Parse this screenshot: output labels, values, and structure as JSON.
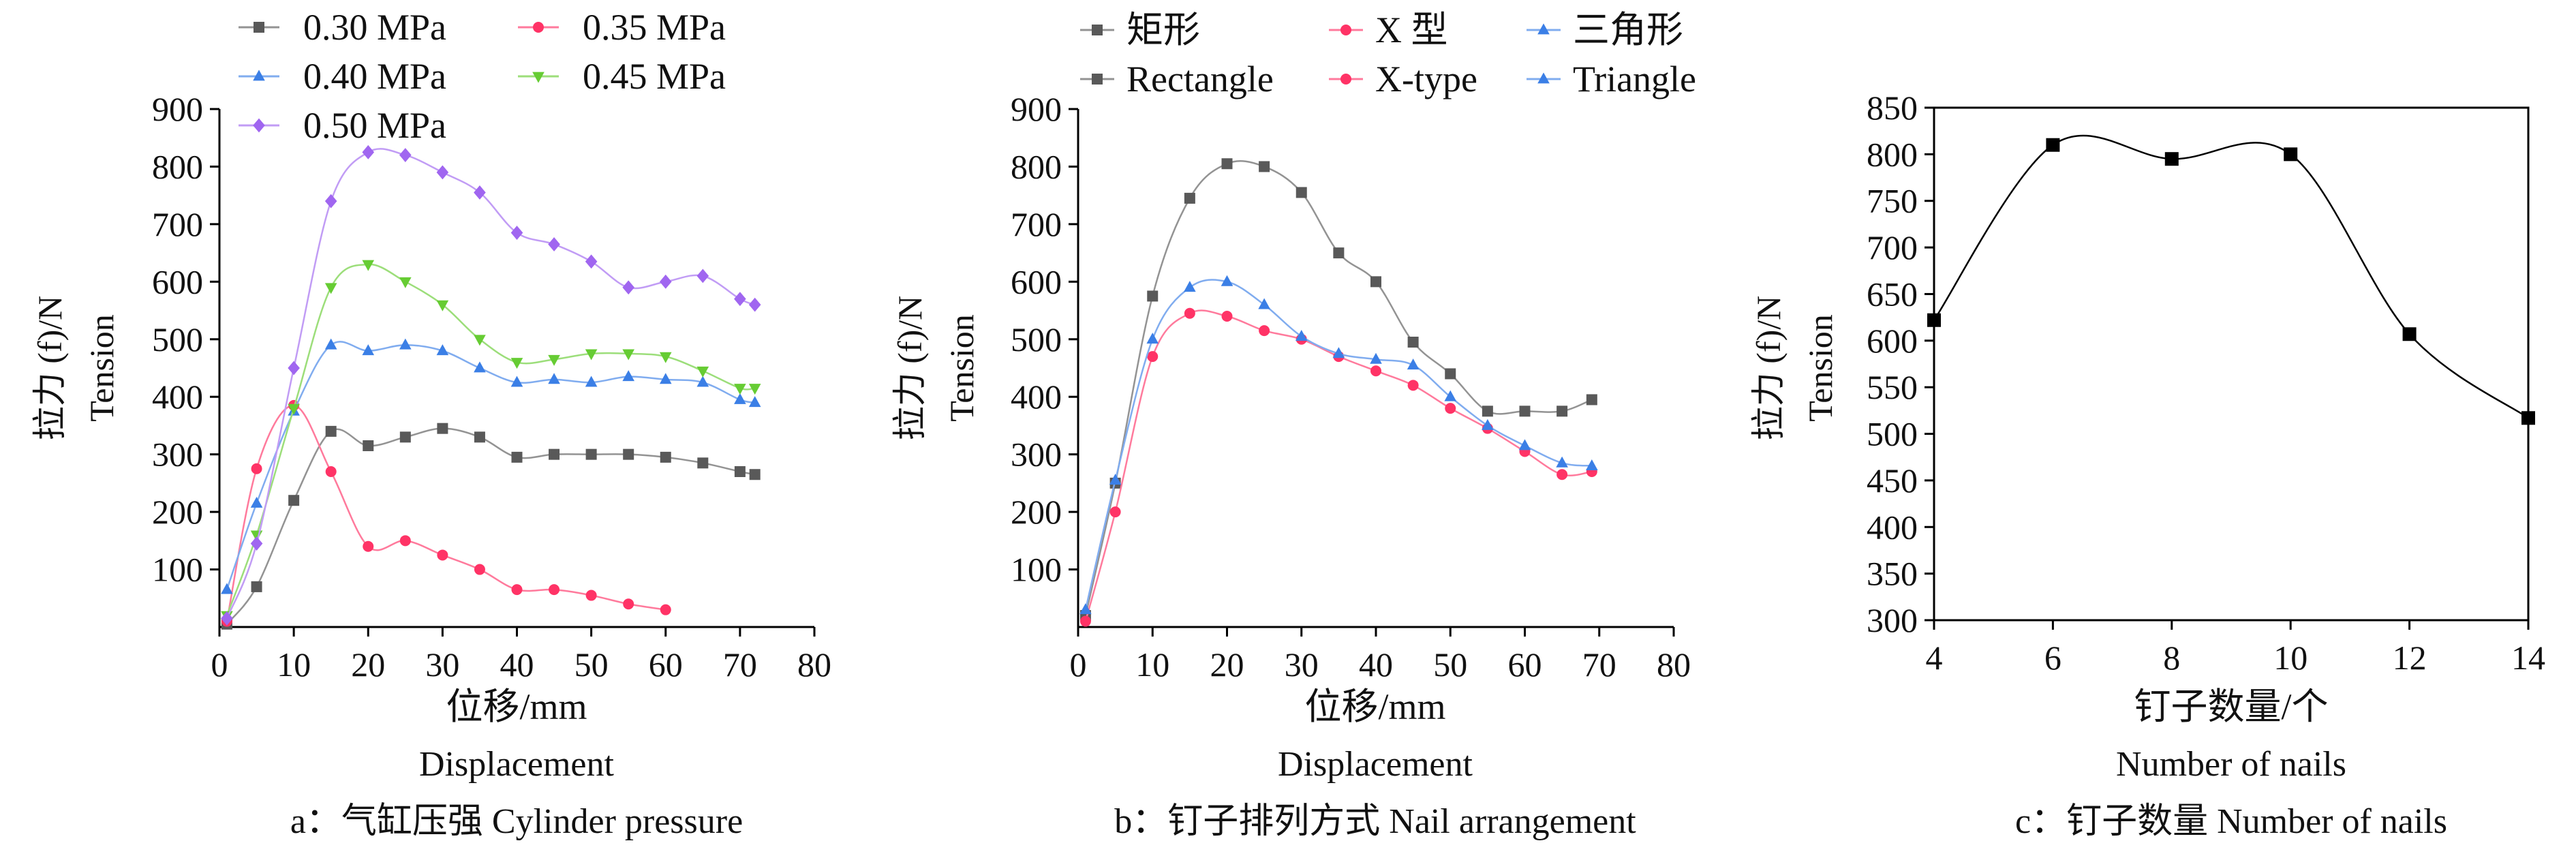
{
  "figure": {
    "panels": [
      {
        "caption": "a：气缸压强 Cylinder pressure",
        "ylabel_cn": "拉力 (f)/N",
        "ylabel_en": "Tension",
        "xlabel_cn": "位移/mm",
        "xlabel_en": "Displacement"
      },
      {
        "caption": "b：钉子排列方式 Nail arrangement",
        "ylabel_cn": "拉力 (f)/N",
        "ylabel_en": "Tension",
        "xlabel_cn": "位移/mm",
        "xlabel_en": "Displacement"
      },
      {
        "caption": "c：钉子数量 Number of nails",
        "ylabel_cn": "拉力 (f)/N",
        "ylabel_en": "Tension",
        "xlabel_cn": "钉子数量/个",
        "xlabel_en": "Number of nails"
      }
    ]
  },
  "chart_data": [
    {
      "type": "line",
      "title": "a：气缸压强 Cylinder pressure",
      "xlabel": "位移/mm Displacement",
      "ylabel": "拉力 (f)/N Tension",
      "xlim": [
        0,
        80
      ],
      "ylim": [
        0,
        900
      ],
      "xticks": [
        "0",
        "10",
        "20",
        "30",
        "40",
        "50",
        "60",
        "70",
        "80"
      ],
      "yticks": [
        "100",
        "200",
        "300",
        "400",
        "500",
        "600",
        "700",
        "800",
        "900"
      ],
      "legend": "top-left",
      "series": [
        {
          "name": "0.30 MPa",
          "marker": "square",
          "color": "#595959",
          "x": [
            1,
            5,
            10,
            15,
            20,
            25,
            30,
            35,
            40,
            45,
            50,
            55,
            60,
            65,
            70,
            72
          ],
          "y": [
            5,
            70,
            220,
            340,
            315,
            330,
            345,
            330,
            295,
            300,
            300,
            300,
            295,
            285,
            270,
            265
          ]
        },
        {
          "name": "0.35 MPa",
          "marker": "circle",
          "color": "#ff3366",
          "x": [
            1,
            5,
            10,
            15,
            20,
            25,
            30,
            35,
            40,
            45,
            50,
            55,
            60
          ],
          "y": [
            10,
            275,
            385,
            270,
            140,
            150,
            125,
            100,
            65,
            65,
            55,
            40,
            30
          ]
        },
        {
          "name": "0.40 MPa",
          "marker": "triangle-up",
          "color": "#3b7fe6",
          "x": [
            1,
            5,
            10,
            15,
            20,
            25,
            30,
            35,
            40,
            45,
            50,
            55,
            60,
            65,
            70,
            72
          ],
          "y": [
            65,
            215,
            375,
            490,
            480,
            490,
            480,
            450,
            425,
            430,
            425,
            435,
            430,
            425,
            395,
            390
          ]
        },
        {
          "name": "0.45 MPa",
          "marker": "triangle-down",
          "color": "#66cc33",
          "x": [
            1,
            5,
            10,
            15,
            20,
            25,
            30,
            35,
            40,
            45,
            50,
            55,
            60,
            65,
            70,
            72
          ],
          "y": [
            20,
            160,
            380,
            590,
            630,
            600,
            560,
            500,
            460,
            465,
            475,
            475,
            470,
            445,
            415,
            415
          ]
        },
        {
          "name": "0.50 MPa",
          "marker": "diamond",
          "color": "#a066f0",
          "x": [
            1,
            5,
            10,
            15,
            20,
            25,
            30,
            35,
            40,
            45,
            50,
            55,
            60,
            65,
            70,
            72
          ],
          "y": [
            15,
            145,
            450,
            740,
            825,
            820,
            790,
            755,
            685,
            665,
            635,
            590,
            600,
            610,
            570,
            560
          ]
        }
      ]
    },
    {
      "type": "line",
      "title": "b：钉子排列方式 Nail arrangement",
      "xlabel": "位移/mm Displacement",
      "ylabel": "拉力 (f)/N Tension",
      "xlim": [
        0,
        80
      ],
      "ylim": [
        0,
        900
      ],
      "xticks": [
        "0",
        "10",
        "20",
        "30",
        "40",
        "50",
        "60",
        "70",
        "80"
      ],
      "yticks": [
        "100",
        "200",
        "300",
        "400",
        "500",
        "600",
        "700",
        "800",
        "900"
      ],
      "legend": "top",
      "series": [
        {
          "name": "矩形 Rectangle",
          "legend_cn": "矩形",
          "legend_en": "Rectangle",
          "marker": "square",
          "color": "#595959",
          "x": [
            1,
            5,
            10,
            15,
            20,
            25,
            30,
            35,
            40,
            45,
            50,
            55,
            60,
            65,
            69
          ],
          "y": [
            20,
            250,
            575,
            745,
            805,
            800,
            755,
            650,
            600,
            495,
            440,
            375,
            375,
            375,
            395
          ]
        },
        {
          "name": "X 型 X-type",
          "legend_cn": "X 型",
          "legend_en": "X-type",
          "marker": "circle",
          "color": "#ff3366",
          "x": [
            1,
            5,
            10,
            15,
            20,
            25,
            30,
            35,
            40,
            45,
            50,
            55,
            60,
            65,
            69
          ],
          "y": [
            10,
            200,
            470,
            545,
            540,
            515,
            500,
            470,
            445,
            420,
            380,
            345,
            305,
            265,
            270
          ]
        },
        {
          "name": "三角形 Triangle",
          "legend_cn": "三角形",
          "legend_en": "Triangle",
          "marker": "triangle-up",
          "color": "#3b7fe6",
          "x": [
            1,
            5,
            10,
            15,
            20,
            25,
            30,
            35,
            40,
            45,
            50,
            55,
            60,
            65,
            69
          ],
          "y": [
            30,
            255,
            500,
            590,
            600,
            560,
            505,
            475,
            465,
            455,
            400,
            350,
            315,
            285,
            280
          ]
        }
      ]
    },
    {
      "type": "line",
      "title": "c：钉子数量 Number of nails",
      "xlabel": "钉子数量/个 Number of nails",
      "ylabel": "拉力 (f)/N Tension",
      "xlim": [
        4,
        14
      ],
      "ylim": [
        300,
        850
      ],
      "xticks": [
        "4",
        "6",
        "8",
        "10",
        "12",
        "14"
      ],
      "yticks": [
        "300",
        "350",
        "400",
        "450",
        "500",
        "550",
        "600",
        "650",
        "700",
        "750",
        "800",
        "850"
      ],
      "legend": "none",
      "series": [
        {
          "name": "Tension",
          "marker": "square",
          "color": "#000000",
          "x": [
            4,
            6,
            8,
            10,
            12,
            14
          ],
          "y": [
            622,
            810,
            795,
            800,
            607,
            517
          ]
        }
      ]
    }
  ]
}
